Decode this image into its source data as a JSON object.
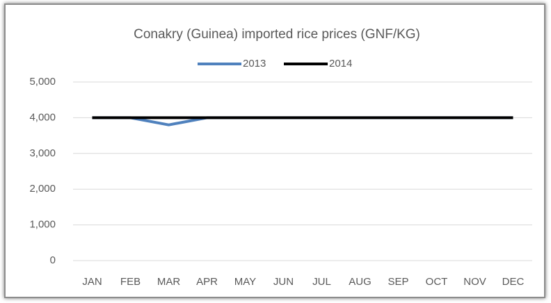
{
  "chart_data": {
    "type": "line",
    "title": "Conakry (Guinea) imported rice prices (GNF/KG)",
    "categories": [
      "JAN",
      "FEB",
      "MAR",
      "APR",
      "MAY",
      "JUN",
      "JUL",
      "AUG",
      "SEP",
      "OCT",
      "NOV",
      "DEC"
    ],
    "series": [
      {
        "name": "2013",
        "color": "#4f81bd",
        "values": [
          4000,
          4000,
          3800,
          4000,
          4000,
          4000,
          4000,
          4000,
          4000,
          4000,
          4000,
          4000
        ]
      },
      {
        "name": "2014",
        "color": "#000000",
        "values": [
          4000,
          4000,
          4000,
          4000,
          4000,
          4000,
          4000,
          4000,
          4000,
          4000,
          4000,
          4000
        ]
      }
    ],
    "ylim": [
      0,
      5000
    ],
    "yticks": [
      0,
      {
        "value": 1000,
        "label": "1,000"
      },
      {
        "value": 2000,
        "label": "2,000"
      },
      {
        "value": 3000,
        "label": "3,000"
      },
      {
        "value": 4000,
        "label": "4,000"
      },
      {
        "value": 5000,
        "label": "5,000"
      }
    ],
    "grid": true,
    "legend": "top"
  }
}
